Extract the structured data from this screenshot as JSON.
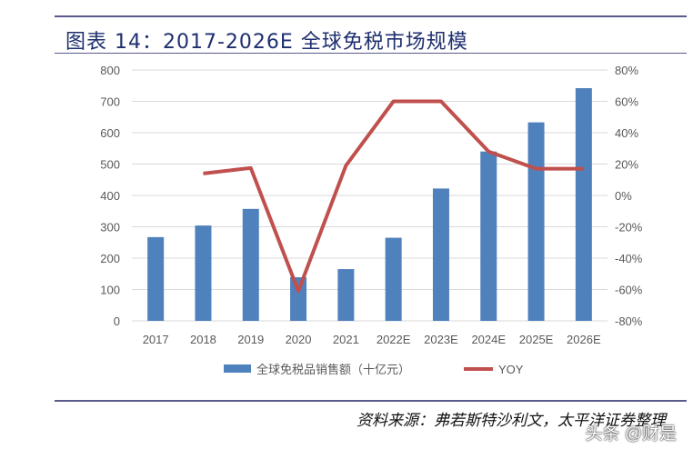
{
  "header": {
    "title": "图表 14：2017-2026E 全球免税市场规模"
  },
  "footer": {
    "source": "资料来源：弗若斯特沙利文，太平洋证券整理",
    "watermark": "头条 @财是"
  },
  "chart_data": {
    "type": "bar+line",
    "title": "图表 14：2017-2026E 全球免税市场规模",
    "categories": [
      "2017",
      "2018",
      "2019",
      "2020",
      "2021",
      "2022E",
      "2023E",
      "2024E",
      "2025E",
      "2026E"
    ],
    "series": [
      {
        "name": "全球免税品销售额（十亿元）",
        "type": "bar",
        "axis": "left",
        "color": "#4f81bd",
        "values": [
          267,
          304,
          357,
          139,
          165,
          265,
          422,
          540,
          633,
          742
        ]
      },
      {
        "name": "YOY",
        "type": "line",
        "axis": "right",
        "color": "#c0504d",
        "values": [
          null,
          14,
          17.5,
          -61,
          19,
          60,
          60,
          28,
          17,
          17
        ]
      }
    ],
    "left_axis": {
      "ylim": [
        0,
        800
      ],
      "ticks": [
        "0",
        "100",
        "200",
        "300",
        "400",
        "500",
        "600",
        "700",
        "800"
      ]
    },
    "right_axis": {
      "ylim": [
        -80,
        80
      ],
      "ticks": [
        "-80%",
        "-60%",
        "-40%",
        "-20%",
        "0%",
        "20%",
        "40%",
        "60%",
        "80%"
      ]
    },
    "grid": true,
    "legend": "bottom"
  }
}
